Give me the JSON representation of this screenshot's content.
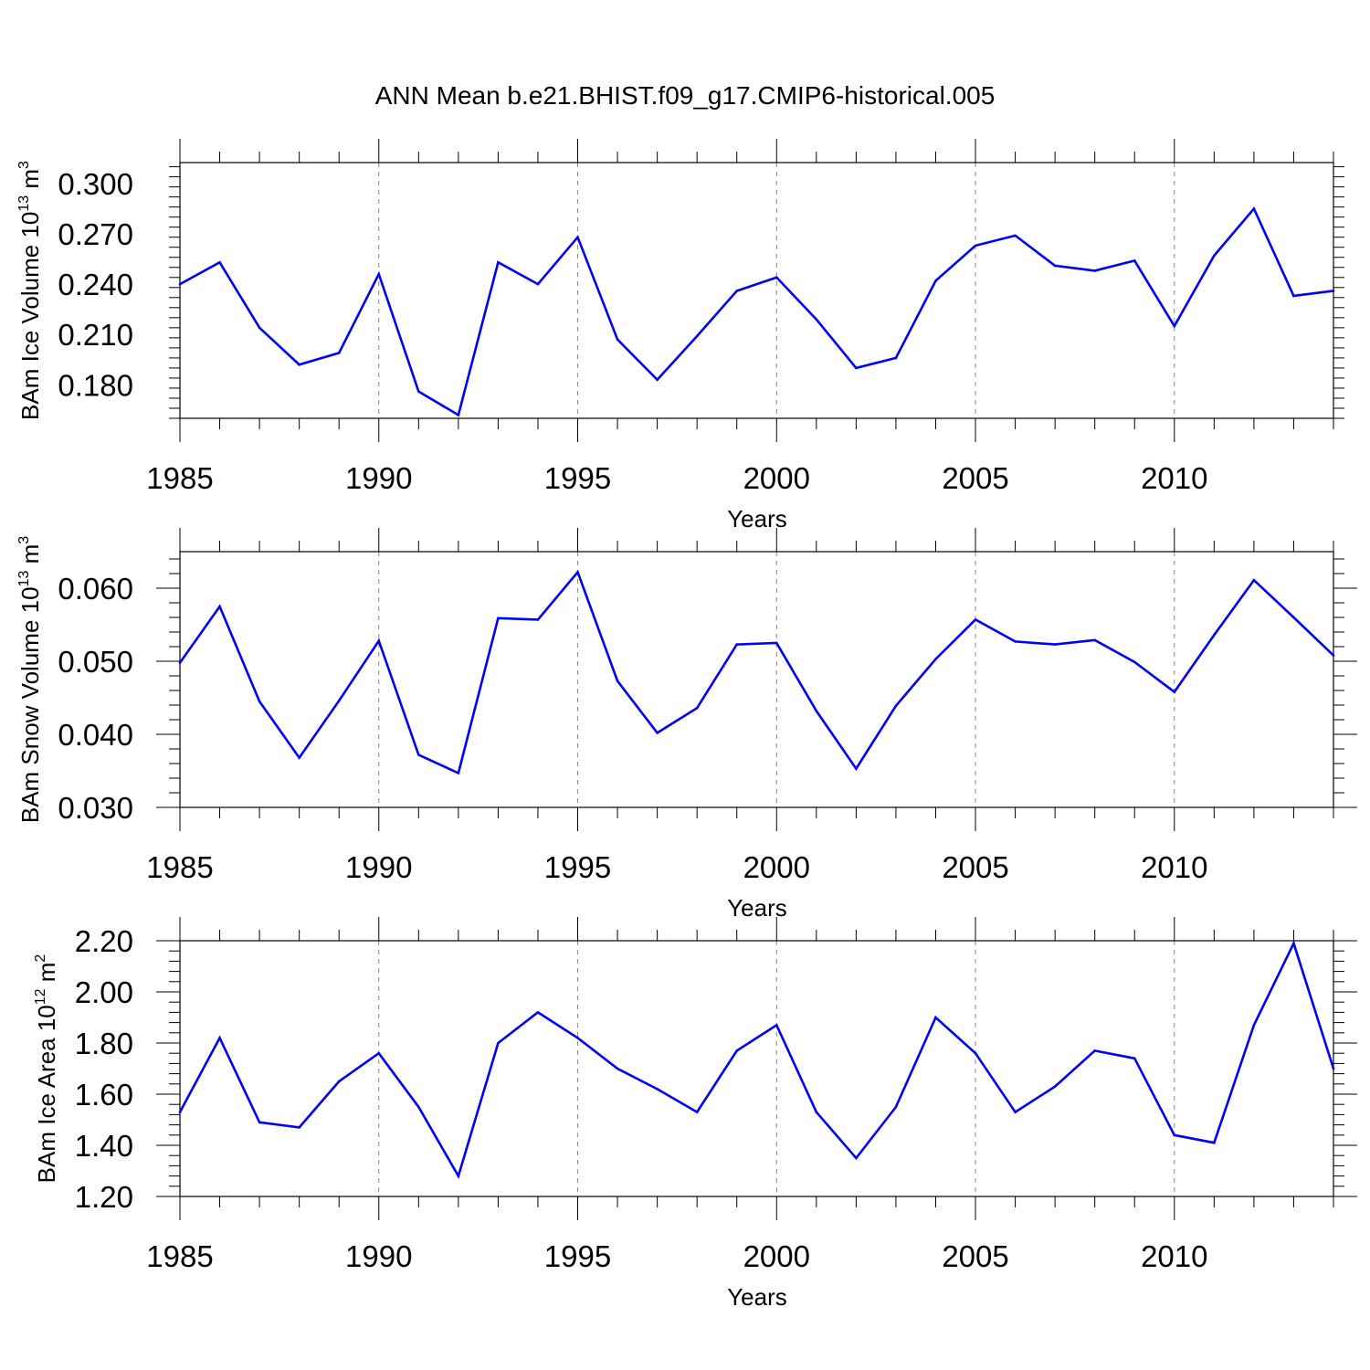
{
  "title": "ANN Mean b.e21.BHIST.f09_g17.CMIP6-historical.005",
  "chart_data": [
    {
      "type": "line",
      "xlabel": "Years",
      "ylabel": {
        "prefix": "BAm Ice Volume 10",
        "exp": "13",
        "unit": " m",
        "unit_exp": "3"
      },
      "xlim": [
        1985,
        2014
      ],
      "ylim": [
        0.16,
        0.3125
      ],
      "yticks": [
        0.18,
        0.21,
        0.24,
        0.27,
        0.3
      ],
      "ytick_labels": [
        "0.180",
        "0.210",
        "0.240",
        "0.270",
        "0.300"
      ],
      "xticks": [
        1985,
        1990,
        1995,
        2000,
        2005,
        2010
      ],
      "xtick_labels": [
        "1985",
        "1990",
        "1995",
        "2000",
        "2005",
        "2010"
      ],
      "grid": "vertical dashed at major x ticks",
      "line_color": "#0000ff",
      "x": [
        1985,
        1986,
        1987,
        1988,
        1989,
        1990,
        1991,
        1992,
        1993,
        1994,
        1995,
        1996,
        1997,
        1998,
        1999,
        2000,
        2001,
        2002,
        2003,
        2004,
        2005,
        2006,
        2007,
        2008,
        2009,
        2010,
        2011,
        2012,
        2013,
        2014
      ],
      "values": [
        0.24,
        0.253,
        0.214,
        0.192,
        0.199,
        0.246,
        0.176,
        0.162,
        0.253,
        0.24,
        0.268,
        0.207,
        0.183,
        0.209,
        0.236,
        0.244,
        0.219,
        0.19,
        0.196,
        0.242,
        0.263,
        0.269,
        0.251,
        0.248,
        0.254,
        0.215,
        0.257,
        0.285,
        0.233,
        0.236
      ]
    },
    {
      "type": "line",
      "xlabel": "Years",
      "ylabel": {
        "prefix": "BAm Snow Volume 10",
        "exp": "13",
        "unit": " m",
        "unit_exp": "3"
      },
      "xlim": [
        1985,
        2014
      ],
      "ylim": [
        0.03,
        0.065
      ],
      "yticks": [
        0.03,
        0.04,
        0.05,
        0.06
      ],
      "ytick_labels": [
        "0.030",
        "0.040",
        "0.050",
        "0.060"
      ],
      "xticks": [
        1985,
        1990,
        1995,
        2000,
        2005,
        2010
      ],
      "xtick_labels": [
        "1985",
        "1990",
        "1995",
        "2000",
        "2005",
        "2010"
      ],
      "grid": "vertical dashed at major x ticks",
      "line_color": "#0000ff",
      "x": [
        1985,
        1986,
        1987,
        1988,
        1989,
        1990,
        1991,
        1992,
        1993,
        1994,
        1995,
        1996,
        1997,
        1998,
        1999,
        2000,
        2001,
        2002,
        2003,
        2004,
        2005,
        2006,
        2007,
        2008,
        2009,
        2010,
        2011,
        2012,
        2013,
        2014
      ],
      "values": [
        0.0498,
        0.0575,
        0.0445,
        0.0368,
        0.0446,
        0.0528,
        0.0372,
        0.0347,
        0.0559,
        0.0557,
        0.0622,
        0.0473,
        0.0402,
        0.0436,
        0.0523,
        0.0525,
        0.0432,
        0.0353,
        0.0439,
        0.0503,
        0.0557,
        0.0527,
        0.0523,
        0.0529,
        0.0499,
        0.0458,
        0.0536,
        0.0611,
        0.056,
        0.0508
      ]
    },
    {
      "type": "line",
      "xlabel": "Years",
      "ylabel": {
        "prefix": "BAm Ice Area 10",
        "exp": "12",
        "unit": " m",
        "unit_exp": "2"
      },
      "xlim": [
        1985,
        2014
      ],
      "ylim": [
        1.2,
        2.2
      ],
      "yticks": [
        1.2,
        1.4,
        1.6,
        1.8,
        2.0,
        2.2
      ],
      "ytick_labels": [
        "1.20",
        "1.40",
        "1.60",
        "1.80",
        "2.00",
        "2.20"
      ],
      "xticks": [
        1985,
        1990,
        1995,
        2000,
        2005,
        2010
      ],
      "xtick_labels": [
        "1985",
        "1990",
        "1995",
        "2000",
        "2005",
        "2010"
      ],
      "grid": "vertical dashed at major x ticks",
      "line_color": "#0000ff",
      "x": [
        1985,
        1986,
        1987,
        1988,
        1989,
        1990,
        1991,
        1992,
        1993,
        1994,
        1995,
        1996,
        1997,
        1998,
        1999,
        2000,
        2001,
        2002,
        2003,
        2004,
        2005,
        2006,
        2007,
        2008,
        2009,
        2010,
        2011,
        2012,
        2013,
        2014
      ],
      "values": [
        1.53,
        1.82,
        1.49,
        1.47,
        1.65,
        1.76,
        1.55,
        1.28,
        1.8,
        1.92,
        1.82,
        1.7,
        1.62,
        1.53,
        1.77,
        1.87,
        1.53,
        1.35,
        1.55,
        1.9,
        1.76,
        1.53,
        1.63,
        1.77,
        1.74,
        1.44,
        1.41,
        1.87,
        2.19,
        1.7
      ]
    }
  ]
}
